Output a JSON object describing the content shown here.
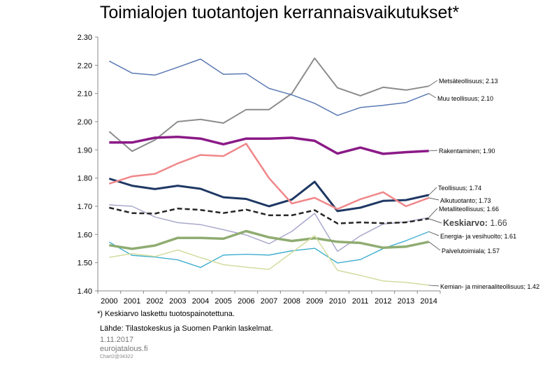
{
  "title": "Toimialojen tuotantojen kerrannaisvaikutukset*",
  "footnote": "*) Keskiarvo laskettu tuotospainotettuna.",
  "source": "Lähde: Tilastokeskus ja Suomen Pankin laskelmat.",
  "date": "1.11.2017",
  "site": "eurojatalous.fi",
  "chart_code": "Chart2@34322",
  "chart_data": {
    "type": "line",
    "x": [
      "2000",
      "2001",
      "2002",
      "2003",
      "2004",
      "2005",
      "2006",
      "2007",
      "2008",
      "2009",
      "2010",
      "2011",
      "2012",
      "2013",
      "2014"
    ],
    "ylim": [
      1.4,
      2.3
    ],
    "yticks": [
      "1.40",
      "1.50",
      "1.60",
      "1.70",
      "1.80",
      "1.90",
      "2.00",
      "2.10",
      "2.20",
      "2.30"
    ],
    "grid": false,
    "series": [
      {
        "name": "Metsäteollisuus",
        "label": "Metsäteollisuus; 2.13",
        "color": "#8c8c8c",
        "width": 2,
        "values": [
          1.965,
          1.895,
          1.935,
          2.0,
          2.008,
          1.995,
          2.043,
          2.043,
          2.1,
          2.225,
          2.12,
          2.092,
          2.122,
          2.112,
          2.126
        ]
      },
      {
        "name": "Muu teollisuus",
        "label": "Muu teollisuus; 2.10",
        "color": "#5b79b3",
        "width": 1.5,
        "values": [
          2.215,
          2.172,
          2.165,
          2.193,
          2.222,
          2.168,
          2.17,
          2.118,
          2.095,
          2.065,
          2.022,
          2.05,
          2.058,
          2.068,
          2.1
        ]
      },
      {
        "name": "Rakentaminen",
        "label": "Rakentaminen; 1.90",
        "color": "#8b1a87",
        "width": 3.5,
        "values": [
          1.926,
          1.926,
          1.943,
          1.946,
          1.94,
          1.92,
          1.94,
          1.94,
          1.943,
          1.932,
          1.887,
          1.908,
          1.886,
          1.892,
          1.896
        ]
      },
      {
        "name": "Teollisuus",
        "label": "Teollisuus; 1.74",
        "color": "#1f3864",
        "width": 3,
        "values": [
          1.798,
          1.773,
          1.761,
          1.773,
          1.762,
          1.732,
          1.726,
          1.7,
          1.724,
          1.787,
          1.683,
          1.695,
          1.719,
          1.722,
          1.74
        ]
      },
      {
        "name": "Alkutuotanto",
        "label": "Alkutuotanto; 1.73",
        "color": "#f0878a",
        "width": 2.5,
        "values": [
          1.78,
          1.806,
          1.815,
          1.852,
          1.882,
          1.878,
          1.922,
          1.8,
          1.71,
          1.73,
          1.69,
          1.725,
          1.75,
          1.7,
          1.73
        ]
      },
      {
        "name": "Metalliteollisuus",
        "label": "Metalliteollisuus; 1.66",
        "color": "#a9a9cc",
        "width": 1.5,
        "values": [
          1.705,
          1.7,
          1.662,
          1.642,
          1.635,
          1.617,
          1.598,
          1.567,
          1.611,
          1.675,
          1.54,
          1.595,
          1.637,
          1.645,
          1.66
        ]
      },
      {
        "name": "Keskiarvo",
        "label": "Keskiarvo; 1.66",
        "color": "#262626",
        "width": 2.5,
        "dashed": true,
        "values": [
          1.695,
          1.676,
          1.674,
          1.692,
          1.687,
          1.676,
          1.688,
          1.668,
          1.668,
          1.686,
          1.639,
          1.643,
          1.64,
          1.643,
          1.656
        ]
      },
      {
        "name": "Energia- ja vesihuolto",
        "label": "Energia- ja vesihuolto; 1.61",
        "color": "#33a9cc",
        "width": 1.3,
        "values": [
          1.573,
          1.526,
          1.52,
          1.51,
          1.483,
          1.527,
          1.53,
          1.527,
          1.542,
          1.551,
          1.499,
          1.511,
          1.55,
          1.578,
          1.61
        ]
      },
      {
        "name": "Palvelutoimiala",
        "label": "Palvelutoimiala; 1.57",
        "color": "#8fac71",
        "width": 3.5,
        "values": [
          1.562,
          1.549,
          1.561,
          1.588,
          1.588,
          1.585,
          1.612,
          1.59,
          1.577,
          1.587,
          1.574,
          1.57,
          1.553,
          1.557,
          1.574
        ]
      },
      {
        "name": "Kemian- ja mineraaliteollisuus",
        "label": "Kemian- ja mineraaliteollisuus; 1.42",
        "color": "#d3dc9f",
        "width": 1.5,
        "values": [
          1.519,
          1.532,
          1.522,
          1.545,
          1.518,
          1.493,
          1.484,
          1.476,
          1.536,
          1.596,
          1.473,
          1.455,
          1.435,
          1.43,
          1.42
        ]
      }
    ]
  }
}
